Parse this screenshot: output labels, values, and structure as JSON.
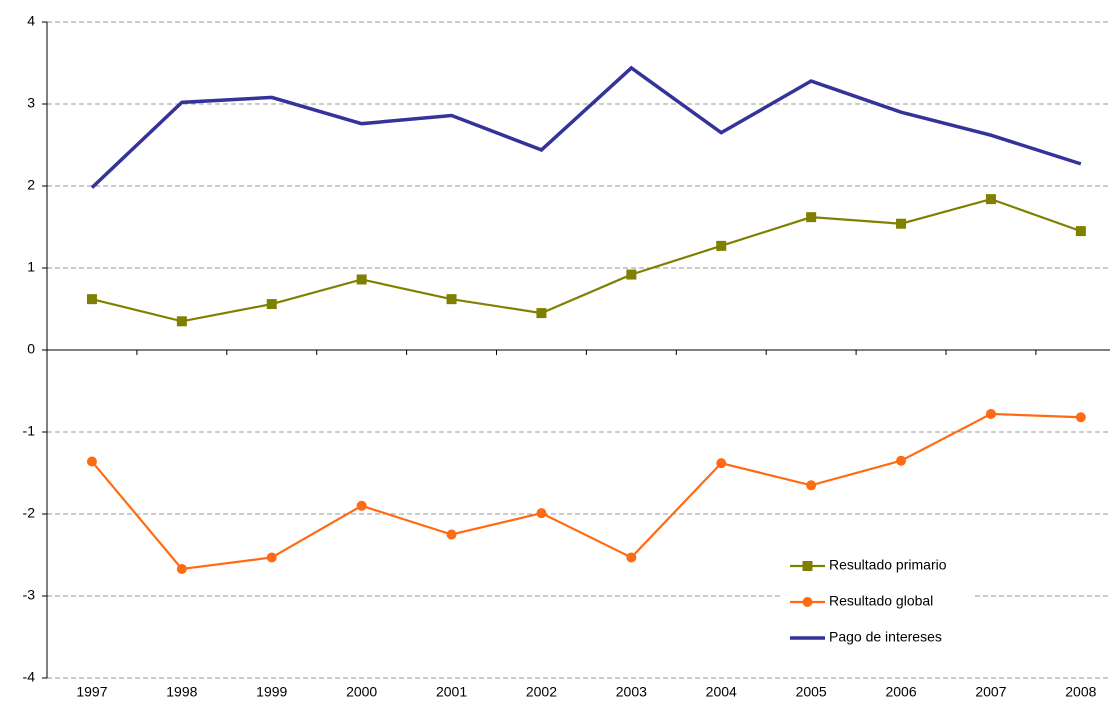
{
  "chart_data": {
    "type": "line",
    "categories": [
      "1997",
      "1998",
      "1999",
      "2000",
      "2001",
      "2002",
      "2003",
      "2004",
      "2005",
      "2006",
      "2007",
      "2008"
    ],
    "series": [
      {
        "name": "Resultado primario",
        "color": "#808000",
        "marker": "square",
        "values": [
          0.62,
          0.35,
          0.56,
          0.86,
          0.62,
          0.45,
          0.92,
          1.27,
          1.62,
          1.54,
          1.84,
          1.45
        ]
      },
      {
        "name": "Resultado global",
        "color": "#ff6a13",
        "marker": "circle",
        "values": [
          -1.36,
          -2.67,
          -2.53,
          -1.9,
          -2.25,
          -1.99,
          -2.53,
          -1.38,
          -1.65,
          -1.35,
          -0.78,
          -0.82
        ]
      },
      {
        "name": "Pago de intereses",
        "color": "#333399",
        "marker": "none",
        "values": [
          1.98,
          3.02,
          3.08,
          2.76,
          2.86,
          2.44,
          3.44,
          2.65,
          3.28,
          2.9,
          2.62,
          2.27
        ]
      }
    ],
    "ylim": [
      -4,
      4
    ],
    "yticks": [
      -4,
      -3,
      -2,
      -1,
      0,
      1,
      2,
      3,
      4
    ],
    "grid": true,
    "legend": "lower right"
  }
}
